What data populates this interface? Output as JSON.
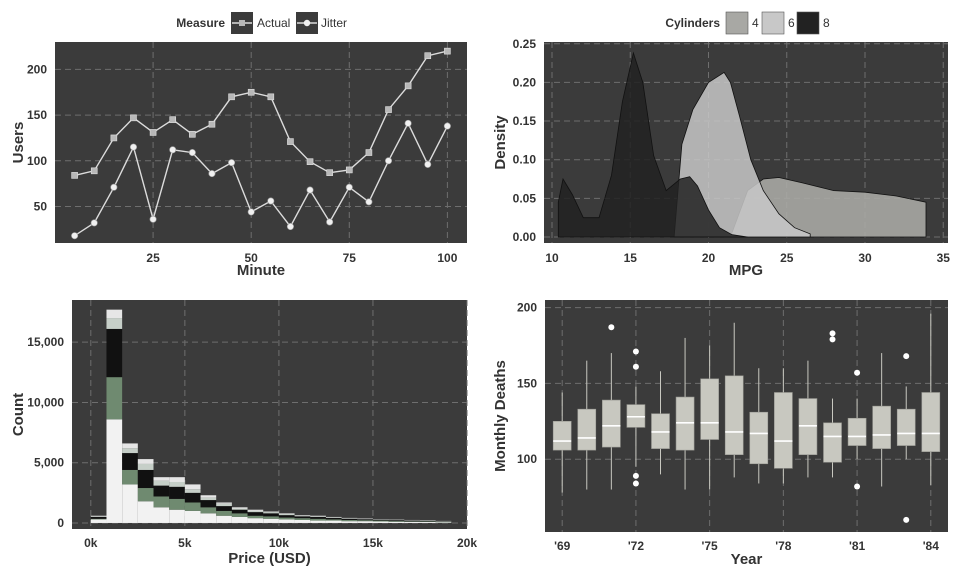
{
  "colors": {
    "panel": "#3b3b3b",
    "grid": "#6e6e6e",
    "line": "#dcdcdc",
    "box": "#c8c8c0",
    "d4": "#a8a8a4",
    "d6": "#c8c8c8",
    "d8": "#222222",
    "stack": [
      "#f2f2f2",
      "#6f8a70",
      "#111111",
      "#c6cfc8",
      "#e6e6e6"
    ]
  },
  "chart_data": [
    {
      "id": "users",
      "type": "line",
      "xlabel": "Minute",
      "ylabel": "Users",
      "xlim": [
        0,
        105
      ],
      "ylim": [
        10,
        230
      ],
      "xticks": [
        25,
        50,
        75,
        100
      ],
      "yticks": [
        50,
        100,
        150,
        200
      ],
      "legend": {
        "title": "Measure",
        "items": [
          "Actual",
          "Jitter"
        ]
      },
      "x": [
        5,
        10,
        15,
        20,
        25,
        30,
        35,
        40,
        45,
        50,
        55,
        60,
        65,
        70,
        75,
        80,
        85,
        90,
        95,
        100
      ],
      "series": [
        {
          "name": "Actual",
          "marker": "square",
          "values": [
            84,
            89,
            125,
            147,
            131,
            145,
            129,
            140,
            170,
            175,
            170,
            121,
            99,
            87,
            90,
            109,
            156,
            182,
            215,
            220
          ]
        },
        {
          "name": "Jitter",
          "marker": "circle",
          "values": [
            18,
            32,
            71,
            115,
            36,
            112,
            109,
            86,
            98,
            44,
            56,
            28,
            68,
            33,
            71,
            55,
            100,
            141,
            96,
            138
          ]
        }
      ]
    },
    {
      "id": "density",
      "type": "area",
      "xlabel": "MPG",
      "ylabel": "Density",
      "xlim": [
        10,
        35
      ],
      "ylim": [
        0,
        0.25
      ],
      "xticks": [
        10,
        15,
        20,
        25,
        30,
        35
      ],
      "yticks": [
        "0.00",
        "0.05",
        "0.10",
        "0.15",
        "0.20",
        "0.25"
      ],
      "legend": {
        "title": "Cylinders",
        "items": [
          "4",
          "6",
          "8"
        ]
      },
      "series": [
        {
          "name": "4",
          "x": [
            21.4,
            22.5,
            23.5,
            24.5,
            26,
            28,
            30,
            32,
            33.9
          ],
          "y": [
            0,
            0.06,
            0.075,
            0.077,
            0.07,
            0.06,
            0.058,
            0.053,
            0.045
          ]
        },
        {
          "name": "6",
          "x": [
            17.8,
            18.3,
            19,
            20,
            21,
            21.4,
            22,
            22.7,
            23.5,
            24.5,
            25.5,
            26.5
          ],
          "y": [
            0,
            0.12,
            0.165,
            0.2,
            0.213,
            0.2,
            0.155,
            0.1,
            0.06,
            0.03,
            0.012,
            0.004
          ]
        },
        {
          "name": "8",
          "x": [
            10.4,
            10.7,
            11.3,
            12,
            13,
            13.8,
            14.5,
            15.2,
            15.8,
            16.5,
            17.3,
            18.2,
            18.8,
            19.3,
            20,
            20.7,
            21.5,
            22.5
          ],
          "y": [
            0.045,
            0.075,
            0.055,
            0.025,
            0.025,
            0.08,
            0.175,
            0.238,
            0.2,
            0.105,
            0.06,
            0.075,
            0.078,
            0.066,
            0.035,
            0.012,
            0.003,
            0.0
          ]
        }
      ]
    },
    {
      "id": "price",
      "type": "bar",
      "stacked": true,
      "xlabel": "Price (USD)",
      "ylabel": "Count",
      "xlim": [
        -1000,
        20000
      ],
      "ylim": [
        -500,
        18500
      ],
      "xticks": [
        "0k",
        "5k",
        "10k",
        "15k",
        "20k"
      ],
      "xtick_values": [
        0,
        5000,
        10000,
        15000,
        20000
      ],
      "yticks": [
        "0",
        "5,000",
        "10,000",
        "15,000"
      ],
      "ytick_values": [
        0,
        5000,
        10000,
        15000
      ],
      "bin_width": 833,
      "bins": [
        {
          "x": 0,
          "segs": [
            300,
            50,
            150,
            50,
            50
          ]
        },
        {
          "x": 833,
          "segs": [
            8600,
            3500,
            4000,
            900,
            700
          ]
        },
        {
          "x": 1667,
          "segs": [
            3200,
            1200,
            1400,
            400,
            400
          ]
        },
        {
          "x": 2500,
          "segs": [
            1800,
            1100,
            1500,
            500,
            400
          ]
        },
        {
          "x": 3333,
          "segs": [
            1300,
            900,
            900,
            400,
            300
          ]
        },
        {
          "x": 4167,
          "segs": [
            1100,
            900,
            1000,
            400,
            400
          ]
        },
        {
          "x": 5000,
          "segs": [
            1000,
            700,
            800,
            300,
            400
          ]
        },
        {
          "x": 5833,
          "segs": [
            800,
            500,
            600,
            200,
            200
          ]
        },
        {
          "x": 6667,
          "segs": [
            600,
            400,
            400,
            200,
            100
          ]
        },
        {
          "x": 7500,
          "segs": [
            500,
            300,
            300,
            100,
            100
          ]
        },
        {
          "x": 8333,
          "segs": [
            400,
            200,
            300,
            100,
            100
          ]
        },
        {
          "x": 9167,
          "segs": [
            350,
            200,
            250,
            100,
            50
          ]
        },
        {
          "x": 10000,
          "segs": [
            300,
            150,
            200,
            100,
            50
          ]
        },
        {
          "x": 10833,
          "segs": [
            250,
            150,
            150,
            50,
            50
          ]
        },
        {
          "x": 11667,
          "segs": [
            200,
            150,
            150,
            50,
            50
          ]
        },
        {
          "x": 12500,
          "segs": [
            200,
            100,
            120,
            50,
            30
          ]
        },
        {
          "x": 13333,
          "segs": [
            150,
            100,
            100,
            40,
            30
          ]
        },
        {
          "x": 14167,
          "segs": [
            150,
            80,
            80,
            40,
            30
          ]
        },
        {
          "x": 15000,
          "segs": [
            120,
            80,
            80,
            30,
            20
          ]
        },
        {
          "x": 15833,
          "segs": [
            100,
            60,
            70,
            30,
            20
          ]
        },
        {
          "x": 16667,
          "segs": [
            90,
            50,
            60,
            30,
            20
          ]
        },
        {
          "x": 17500,
          "segs": [
            80,
            50,
            50,
            20,
            20
          ]
        },
        {
          "x": 18333,
          "segs": [
            60,
            40,
            40,
            20,
            10
          ]
        }
      ]
    },
    {
      "id": "deaths",
      "type": "box",
      "xlabel": "Year",
      "ylabel": "Monthly Deaths",
      "xlim": [
        68.3,
        84.7
      ],
      "ylim": [
        52,
        205
      ],
      "yticks": [
        100,
        150,
        200
      ],
      "xticks": [
        "'69",
        "'72",
        "'75",
        "'78",
        "'81",
        "'84"
      ],
      "xtick_values": [
        69,
        72,
        75,
        78,
        81,
        84
      ],
      "boxes": [
        {
          "year": 69,
          "whisker_low": 78,
          "q1": 106,
          "median": 112,
          "q3": 125,
          "whisker_high": 144,
          "outliers": []
        },
        {
          "year": 70,
          "whisker_low": 80,
          "q1": 106,
          "median": 114,
          "q3": 133,
          "whisker_high": 165,
          "outliers": []
        },
        {
          "year": 71,
          "whisker_low": 80,
          "q1": 108,
          "median": 122,
          "q3": 139,
          "whisker_high": 170,
          "outliers": [
            187
          ]
        },
        {
          "year": 72,
          "whisker_low": 95,
          "q1": 121,
          "median": 128,
          "q3": 136,
          "whisker_high": 148,
          "outliers": [
            171,
            161,
            89,
            84
          ]
        },
        {
          "year": 73,
          "whisker_low": 90,
          "q1": 107,
          "median": 118,
          "q3": 130,
          "whisker_high": 158,
          "outliers": []
        },
        {
          "year": 74,
          "whisker_low": 80,
          "q1": 106,
          "median": 124,
          "q3": 141,
          "whisker_high": 180,
          "outliers": []
        },
        {
          "year": 75,
          "whisker_low": 80,
          "q1": 113,
          "median": 124,
          "q3": 153,
          "whisker_high": 175,
          "outliers": []
        },
        {
          "year": 76,
          "whisker_low": 88,
          "q1": 103,
          "median": 118,
          "q3": 155,
          "whisker_high": 190,
          "outliers": []
        },
        {
          "year": 77,
          "whisker_low": 84,
          "q1": 97,
          "median": 117,
          "q3": 131,
          "whisker_high": 160,
          "outliers": []
        },
        {
          "year": 78,
          "whisker_low": 84,
          "q1": 94,
          "median": 112,
          "q3": 144,
          "whisker_high": 160,
          "outliers": []
        },
        {
          "year": 79,
          "whisker_low": 88,
          "q1": 103,
          "median": 122,
          "q3": 140,
          "whisker_high": 165,
          "outliers": []
        },
        {
          "year": 80,
          "whisker_low": 88,
          "q1": 98,
          "median": 115,
          "q3": 124,
          "whisker_high": 140,
          "outliers": [
            183,
            179
          ]
        },
        {
          "year": 81,
          "whisker_low": 100,
          "q1": 109,
          "median": 115,
          "q3": 127,
          "whisker_high": 140,
          "outliers": [
            157,
            82
          ]
        },
        {
          "year": 82,
          "whisker_low": 82,
          "q1": 107,
          "median": 116,
          "q3": 135,
          "whisker_high": 170,
          "outliers": []
        },
        {
          "year": 83,
          "whisker_low": 100,
          "q1": 109,
          "median": 117,
          "q3": 133,
          "whisker_high": 148,
          "outliers": [
            168,
            60
          ]
        },
        {
          "year": 84,
          "whisker_low": 83,
          "q1": 105,
          "median": 117,
          "q3": 144,
          "whisker_high": 196,
          "outliers": []
        }
      ]
    }
  ]
}
